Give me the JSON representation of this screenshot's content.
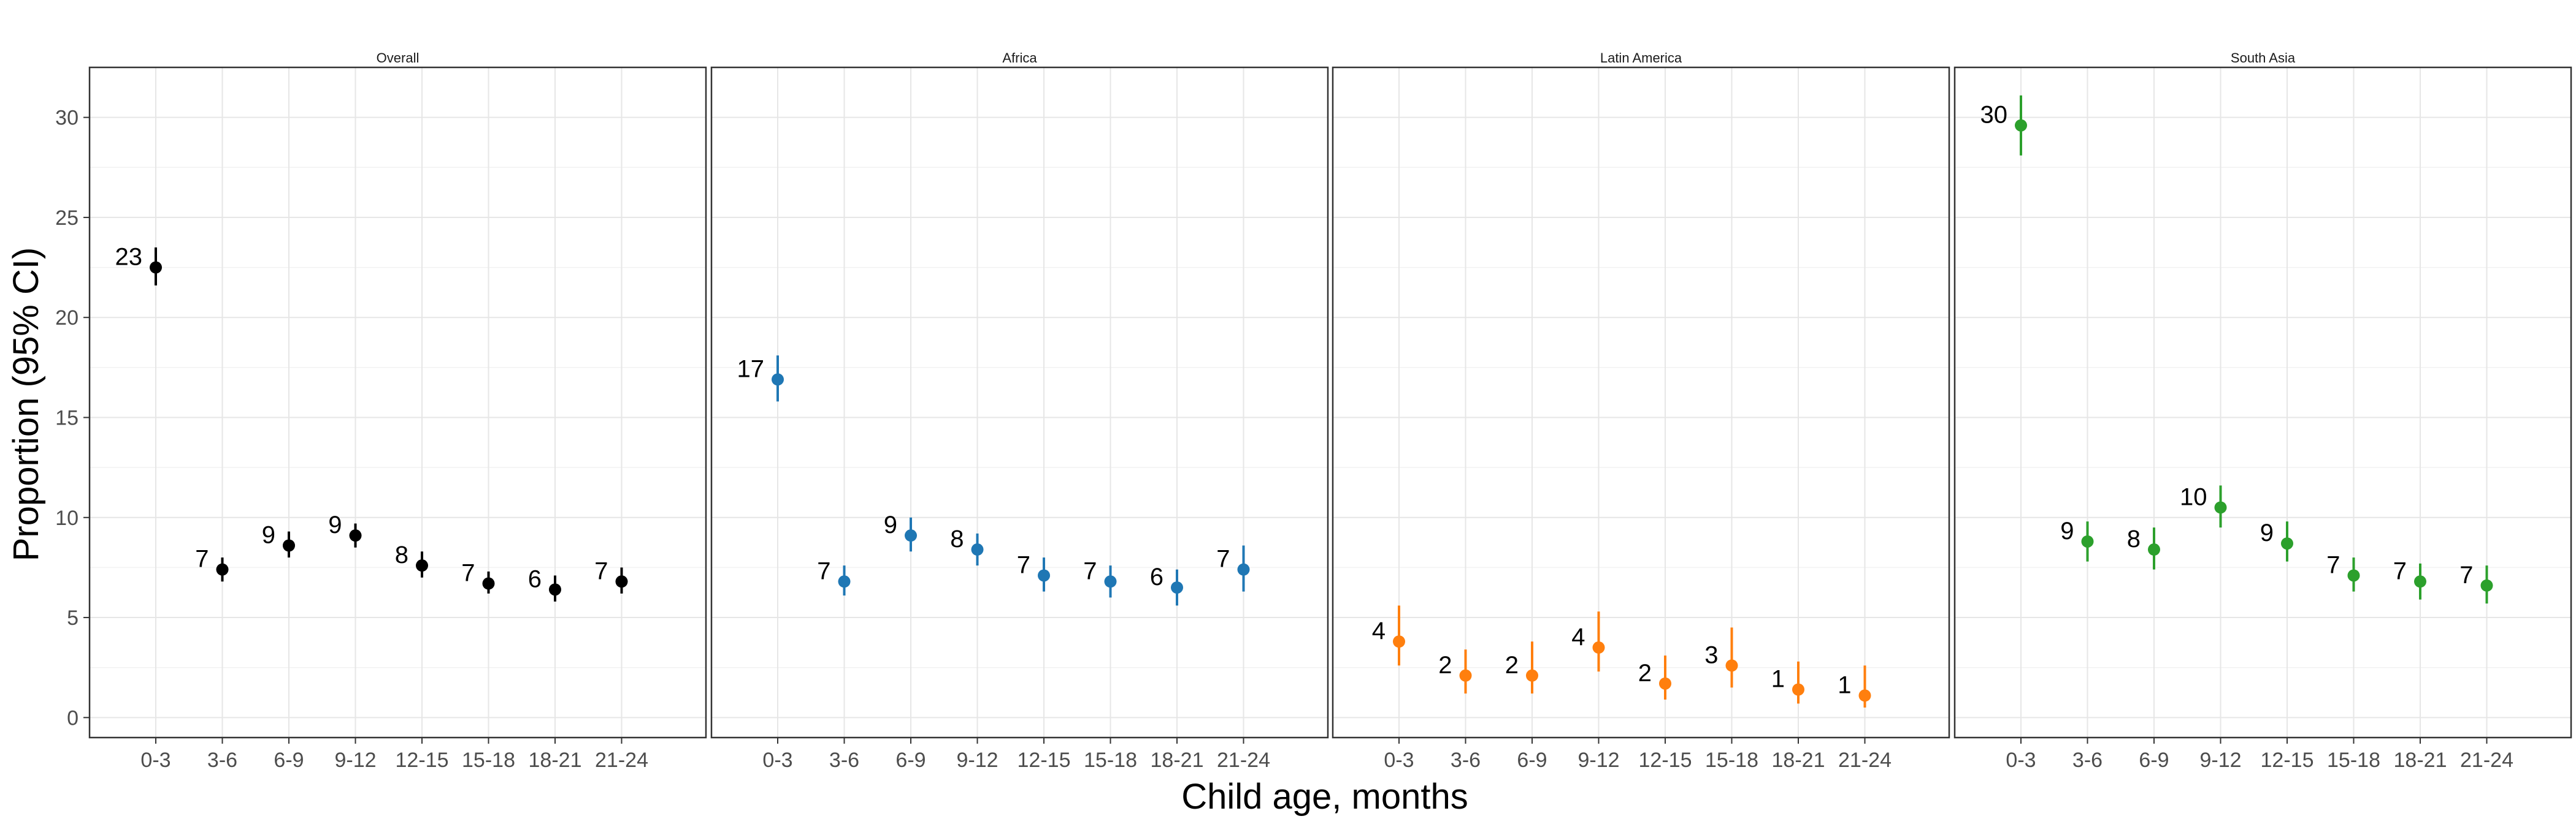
{
  "chart_data": {
    "type": "scatter",
    "subtype": "faceted point-range (point estimate with 95% CI error bars)",
    "xlabel": "Child age, months",
    "ylabel": "Proportion (95% CI)",
    "ylim": [
      -1,
      32.5
    ],
    "y_ticks": [
      0,
      5,
      10,
      15,
      20,
      25,
      30
    ],
    "categories": [
      "0-3",
      "3-6",
      "6-9",
      "9-12",
      "12-15",
      "15-18",
      "18-21",
      "21-24"
    ],
    "grid": true,
    "legend": "none",
    "panels": [
      {
        "name": "Overall",
        "color": "#000000",
        "values": [
          22.5,
          7.4,
          8.6,
          9.1,
          7.6,
          6.7,
          6.4,
          6.8
        ],
        "ci_low": [
          21.6,
          6.8,
          8.0,
          8.5,
          7.0,
          6.2,
          5.8,
          6.2
        ],
        "ci_high": [
          23.5,
          8.0,
          9.3,
          9.7,
          8.3,
          7.3,
          7.1,
          7.5
        ],
        "labels": [
          "23",
          "7",
          "9",
          "9",
          "8",
          "7",
          "6",
          "7"
        ]
      },
      {
        "name": "Africa",
        "color": "#1f77b4",
        "values": [
          16.9,
          6.8,
          9.1,
          8.4,
          7.1,
          6.8,
          6.5,
          7.4
        ],
        "ci_low": [
          15.8,
          6.1,
          8.3,
          7.6,
          6.3,
          6.0,
          5.6,
          6.3
        ],
        "ci_high": [
          18.1,
          7.6,
          10.0,
          9.2,
          8.0,
          7.6,
          7.4,
          8.6
        ],
        "labels": [
          "17",
          "7",
          "9",
          "8",
          "7",
          "7",
          "6",
          "7"
        ]
      },
      {
        "name": "Latin America",
        "color": "#ff7f0e",
        "values": [
          3.8,
          2.1,
          2.1,
          3.5,
          1.7,
          2.6,
          1.4,
          1.1
        ],
        "ci_low": [
          2.6,
          1.2,
          1.2,
          2.3,
          0.9,
          1.5,
          0.7,
          0.5
        ],
        "ci_high": [
          5.6,
          3.4,
          3.8,
          5.3,
          3.1,
          4.5,
          2.8,
          2.6
        ],
        "labels": [
          "4",
          "2",
          "2",
          "4",
          "2",
          "3",
          "1",
          "1"
        ]
      },
      {
        "name": "South Asia",
        "color": "#2ca02c",
        "values": [
          29.6,
          8.8,
          8.4,
          10.5,
          8.7,
          7.1,
          6.8,
          6.6
        ],
        "ci_low": [
          28.1,
          7.8,
          7.4,
          9.5,
          7.8,
          6.3,
          5.9,
          5.7
        ],
        "ci_high": [
          31.1,
          9.8,
          9.5,
          11.6,
          9.8,
          8.0,
          7.7,
          7.6
        ],
        "labels": [
          "30",
          "9",
          "8",
          "10",
          "9",
          "7",
          "7",
          "7"
        ]
      }
    ]
  }
}
